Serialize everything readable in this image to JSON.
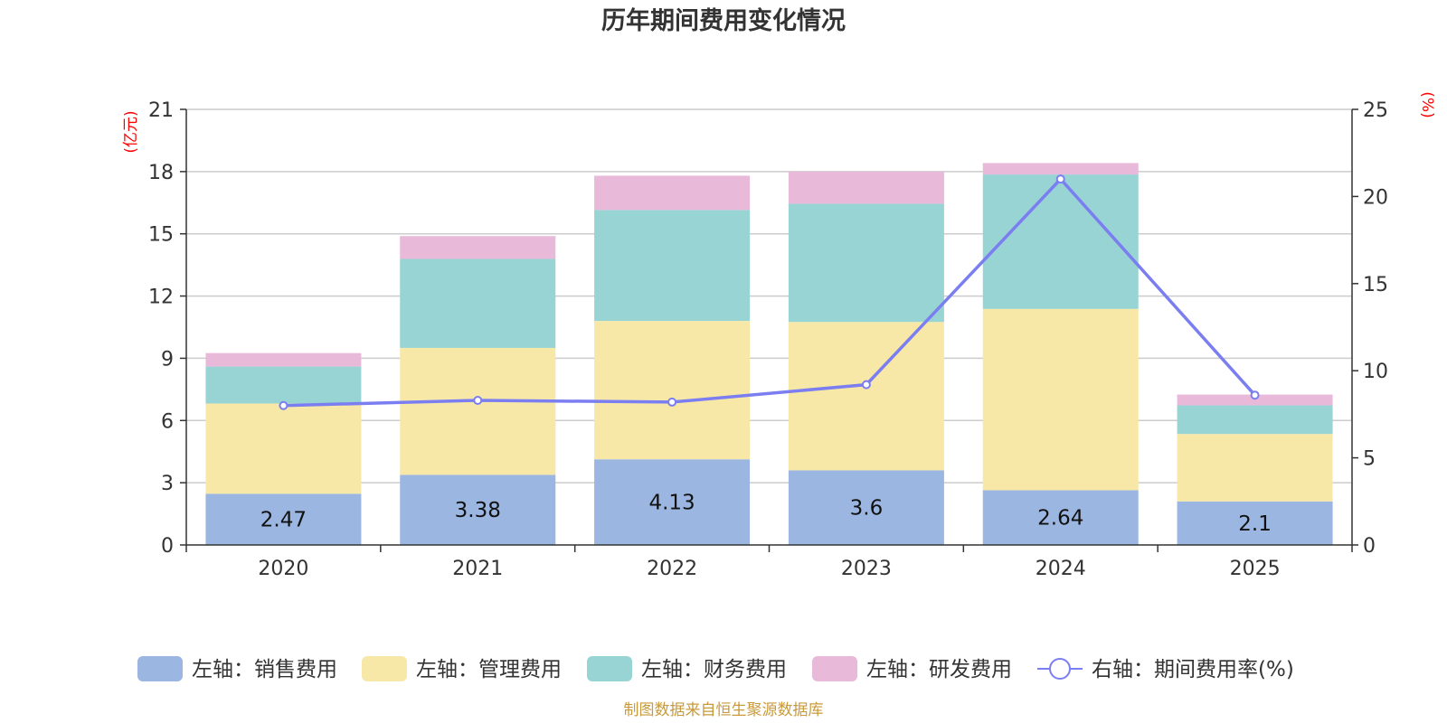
{
  "chart_data": {
    "type": "bar",
    "stacked": true,
    "title": "历年期间费用变化情况",
    "categories": [
      "2020",
      "2021",
      "2022",
      "2023",
      "2024",
      "2025"
    ],
    "left_axis": {
      "unit": "(亿元)",
      "ylim": [
        0,
        21
      ],
      "ticks": [
        0,
        3,
        6,
        9,
        12,
        15,
        18,
        21
      ]
    },
    "right_axis": {
      "unit": "(%)",
      "ylim": [
        0,
        25
      ],
      "ticks": [
        0,
        5,
        10,
        15,
        20,
        25
      ]
    },
    "series": [
      {
        "name": "左轴：销售费用",
        "axis": "left",
        "color": "#9bb7e1",
        "values": [
          2.47,
          3.38,
          4.13,
          3.6,
          2.64,
          2.1
        ],
        "labels": [
          "2.47",
          "3.38",
          "4.13",
          "3.6",
          "2.64",
          "2.1"
        ]
      },
      {
        "name": "左轴：管理费用",
        "axis": "left",
        "color": "#f8e8a8",
        "values": [
          4.35,
          6.12,
          6.67,
          7.15,
          8.74,
          3.25
        ]
      },
      {
        "name": "左轴：财务费用",
        "axis": "left",
        "color": "#98d4d4",
        "values": [
          1.78,
          4.29,
          5.35,
          5.7,
          6.48,
          1.38
        ]
      },
      {
        "name": "左轴：研发费用",
        "axis": "left",
        "color": "#e8b9d9",
        "values": [
          0.65,
          1.1,
          1.65,
          1.55,
          0.55,
          0.52
        ]
      }
    ],
    "line": {
      "name": "右轴：期间费用率(%)",
      "axis": "right",
      "color": "#7b7ef0",
      "values": [
        8.0,
        8.3,
        8.2,
        9.2,
        21.0,
        8.6
      ]
    },
    "source_note": "制图数据来自恒生聚源数据库",
    "colors": {
      "title": "#333333",
      "axis": "#333333",
      "grid": "#cccccc",
      "unit": "#ff0000",
      "source": "#c89a3c"
    }
  }
}
